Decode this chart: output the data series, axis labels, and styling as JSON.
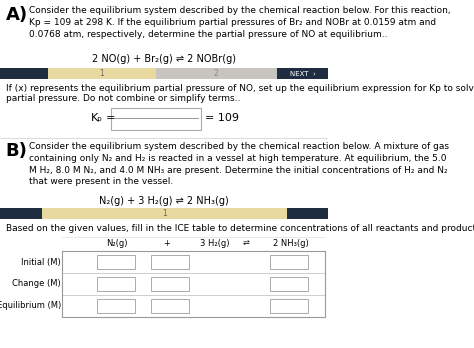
{
  "bg_color": "#ffffff",
  "section_a_label": "A)",
  "section_a_text": "Consider the equilibrium system described by the chemical reaction below. For this reaction,\nKp = 109 at 298 K. If the equilibrium partial pressures of Br₂ and NOBr at 0.0159 atm and\n0.0768 atm, respectively, determine the partial pressure of NO at equilibrium..",
  "section_a_equation": "2 NO(g) + Br₂(g) ⇌ 2 NOBr(g)",
  "progress_bar_dark": "#1e2d40",
  "progress_bar_yellow": "#e8d9a0",
  "progress_bar_gray": "#c8c4c0",
  "progress_bar_next": "NEXT  ›",
  "section_a_desc1": "If (x) represents the equilibrium partial pressure of NO, set up the equilibrium expression for Kp to solve for the",
  "section_a_desc2": "partial pressure. Do not combine or simplify terms..",
  "kp_label": "Kₚ",
  "kp_equals": "=",
  "kp_value": "= 109",
  "divider_color": "#dddddd",
  "section_b_label": "B)",
  "section_b_text": "Consider the equilibrium system described by the chemical reaction below. A mixture of gas\ncontaining only N₂ and H₂ is reacted in a vessel at high temperature. At equilibrium, the 5.0\nM H₂, 8.0 M N₂, and 4.0 M NH₃ are present. Determine the initial concentrations of H₂ and N₂\nthat were present in the vessel.",
  "section_b_equation": "N₂(g) + 3 H₂(g) ⇌ 2 NH₃(g)",
  "section_b_desc": "Based on the given values, fill in the ICE table to determine concentrations of all reactants and products.",
  "ice_header_col0": "N₂(g)",
  "ice_header_plus": "+",
  "ice_header_col1": "3 H₂(g)",
  "ice_header_eq": "⇌",
  "ice_header_col2": "2 NH₃(g)",
  "ice_row_labels": [
    "Initial (M)",
    "Change (M)",
    "Equilibrium (M)"
  ],
  "font_size": 6.5,
  "font_size_eq": 7.0,
  "font_size_label": 13,
  "font_size_kp": 8.0
}
